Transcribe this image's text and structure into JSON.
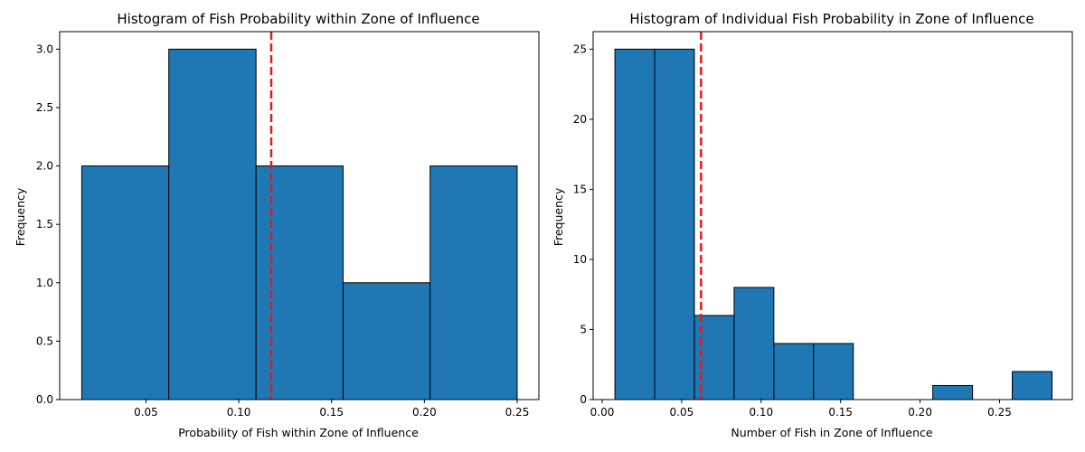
{
  "chart_data": [
    {
      "type": "bar",
      "title": "Histogram of Fish Probability within Zone of Influence",
      "xlabel": "Probability of Fish within Zone of Influence",
      "ylabel": "Frequency",
      "xlim": [
        0.0035,
        0.2617
      ],
      "ylim": [
        0,
        3.15
      ],
      "xticks": [
        0.05,
        0.1,
        0.15,
        0.2,
        0.25
      ],
      "xtick_labels": [
        "0.05",
        "0.10",
        "0.15",
        "0.20",
        "0.25"
      ],
      "yticks": [
        0.0,
        0.5,
        1.0,
        1.5,
        2.0,
        2.5,
        3.0
      ],
      "ytick_labels": [
        "0.0",
        "0.5",
        "1.0",
        "1.5",
        "2.0",
        "2.5",
        "3.0"
      ],
      "bin_edges": [
        0.0154,
        0.0623,
        0.1093,
        0.1562,
        0.2031,
        0.25
      ],
      "values": [
        2,
        3,
        2,
        1,
        2
      ],
      "mean_line": 0.1175,
      "bar_color": "#1f77b4",
      "line_color": "#e31a1c",
      "grid": false
    },
    {
      "type": "bar",
      "title": "Histogram of Individual Fish Probability in Zone of Influence",
      "xlabel": "Number of Fish in Zone of Influence",
      "ylabel": "Frequency",
      "xlim": [
        -0.0057,
        0.2958
      ],
      "ylim": [
        0,
        26.25
      ],
      "xticks": [
        0.0,
        0.05,
        0.1,
        0.15,
        0.2,
        0.25
      ],
      "xtick_labels": [
        "0.00",
        "0.05",
        "0.10",
        "0.15",
        "0.20",
        "0.25"
      ],
      "yticks": [
        0,
        5,
        10,
        15,
        20,
        25
      ],
      "ytick_labels": [
        "0",
        "5",
        "10",
        "15",
        "20",
        "25"
      ],
      "bin_edges": [
        0.008,
        0.033,
        0.058,
        0.083,
        0.108,
        0.133,
        0.158,
        0.183,
        0.208,
        0.233,
        0.258,
        0.283
      ],
      "values": [
        25,
        25,
        6,
        8,
        4,
        4,
        0,
        0,
        1,
        0,
        2
      ],
      "mean_line": 0.0622,
      "bar_color": "#1f77b4",
      "line_color": "#e31a1c",
      "grid": false
    }
  ]
}
